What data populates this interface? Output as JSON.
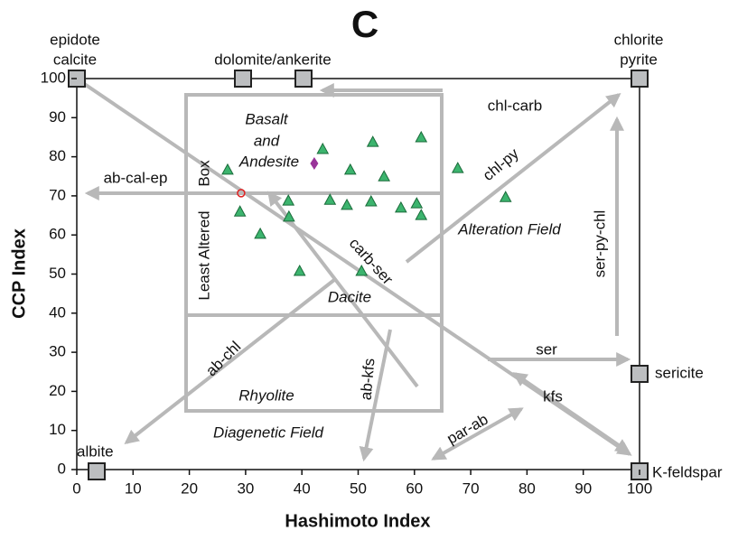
{
  "chart_data": {
    "type": "scatter",
    "title": "C",
    "x_label": "Hashimoto Index",
    "y_label": "CCP Index",
    "xlim": [
      0,
      100
    ],
    "ylim": [
      0,
      100
    ],
    "xticks": [
      0,
      10,
      20,
      30,
      40,
      50,
      60,
      70,
      80,
      90,
      100
    ],
    "yticks": [
      0,
      10,
      20,
      30,
      40,
      50,
      60,
      70,
      80,
      90,
      100
    ],
    "series": [
      {
        "color": "#3cb46e",
        "marker": "triangle",
        "x": [
          26.8,
          29,
          32.6,
          37.6,
          37.7,
          39.6,
          43.7,
          45,
          48,
          48.6,
          50.6,
          52.6,
          52.3,
          54.6,
          57.6,
          60.4,
          61.2,
          61.2,
          67.7,
          76.2
        ],
        "values": [
          76.7,
          66,
          60.3,
          68.8,
          64.7,
          50.8,
          82,
          69,
          67.7,
          76.7,
          50.8,
          83.8,
          68.6,
          75,
          67,
          68.1,
          65.1,
          85,
          77.1,
          69.7
        ]
      },
      {
        "color": "#993399",
        "marker": "diamond",
        "x": [
          42.2
        ],
        "values": [
          78.3
        ]
      },
      {
        "color": "#e02020",
        "marker": "open-circle",
        "x": [
          29.2
        ],
        "values": [
          70.7
        ]
      }
    ],
    "annotations": [
      "epidote",
      "calcite",
      "dolomite/ankerite",
      "chlorite",
      "pyrite",
      "sericite",
      "K-feldspar",
      "albite",
      "Basalt",
      "and",
      "Andesite",
      "Least Altered",
      "Box",
      "Dacite",
      "Rhyolite",
      "Diagenetic Field",
      "Alteration Field",
      "ab-cal-ep",
      "chl-carb",
      "chl-py",
      "carb-ser",
      "ser-py-chl",
      "ser",
      "kfs",
      "par-ab",
      "ab-kfs",
      "ab-chl"
    ]
  }
}
